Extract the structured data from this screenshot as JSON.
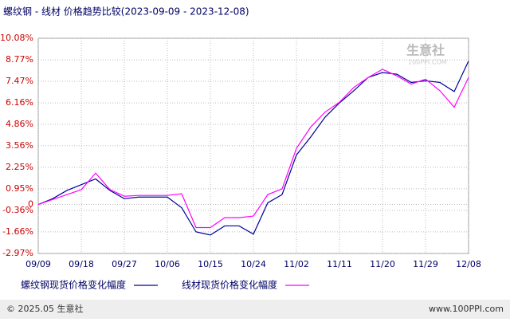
{
  "chart_data": {
    "type": "line",
    "title": "螺纹钢 - 线材 价格趋势比较(2023-09-09 - 2023-12-08)",
    "categories": [
      "09/09",
      null,
      null,
      "09/18",
      null,
      null,
      "09/27",
      null,
      null,
      "10/06",
      null,
      null,
      "10/15",
      null,
      null,
      "10/24",
      null,
      null,
      "11/02",
      null,
      null,
      "11/11",
      null,
      null,
      "11/20",
      null,
      null,
      "11/29",
      null,
      null,
      "12/08"
    ],
    "series": [
      {
        "name": "螺纹钢现货价格变化幅度",
        "color": "#000099",
        "values": [
          0,
          0.35,
          0.85,
          1.2,
          1.55,
          0.85,
          0.35,
          0.45,
          0.45,
          0.45,
          -0.2,
          -1.66,
          -1.85,
          -1.3,
          -1.3,
          -1.8,
          0.1,
          0.6,
          3.0,
          4.1,
          5.3,
          6.16,
          6.9,
          7.7,
          8.0,
          7.9,
          7.4,
          7.5,
          7.4,
          6.85,
          8.7
        ]
      },
      {
        "name": "线材现货价格变化幅度",
        "color": "#ff00ff",
        "values": [
          0,
          0.3,
          0.6,
          0.9,
          1.9,
          0.9,
          0.5,
          0.55,
          0.55,
          0.55,
          0.65,
          -1.4,
          -1.4,
          -0.8,
          -0.8,
          -0.7,
          0.6,
          0.95,
          3.4,
          4.7,
          5.6,
          6.2,
          7.1,
          7.7,
          8.2,
          7.8,
          7.3,
          7.6,
          6.9,
          5.9,
          7.7
        ]
      }
    ],
    "ylim": [
      -2.97,
      10.08
    ],
    "yticks": [
      {
        "value": -2.97,
        "label": "-2.97%"
      },
      {
        "value": -1.66,
        "label": "-1.66%"
      },
      {
        "value": -0.36,
        "label": "-0.36%"
      },
      0,
      {
        "value": 0.95,
        "label": "0.95%"
      },
      {
        "value": 2.25,
        "label": "2.25%"
      },
      {
        "value": 3.56,
        "label": "3.56%"
      },
      {
        "value": 4.86,
        "label": "4.86%"
      },
      {
        "value": 6.16,
        "label": "6.16%"
      },
      {
        "value": 7.47,
        "label": "7.47%"
      },
      {
        "value": 8.77,
        "label": "8.77%"
      },
      {
        "value": 10.08,
        "label": "10.08%"
      }
    ],
    "grid": true,
    "watermark": {
      "name": "生意社",
      "site": "100PPI.COM"
    },
    "footer": {
      "left": "© 2025.05 生意社",
      "right": "www.100PPI.com"
    }
  }
}
